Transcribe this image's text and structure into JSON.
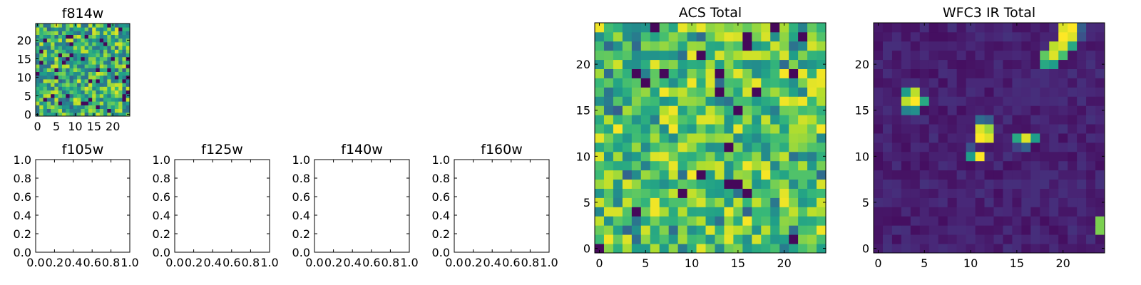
{
  "colormap": "viridis",
  "chart_data": [
    {
      "id": "f814w",
      "type": "heatmap",
      "title": "f814w",
      "size": 25,
      "xlim": [
        -0.5,
        24.5
      ],
      "ylim": [
        -0.5,
        24.5
      ],
      "xticks": [
        0,
        5,
        10,
        15,
        20
      ],
      "yticks": [
        0,
        5,
        10,
        15,
        20
      ],
      "xtick_labels": [
        "0",
        "5",
        "10",
        "15",
        "20"
      ],
      "ytick_labels": [
        "0",
        "5",
        "10",
        "15",
        "20"
      ],
      "pattern": "noise",
      "seed": 814,
      "background": 0.6,
      "spread": 0.3,
      "rows": []
    },
    {
      "id": "f105w",
      "type": "empty",
      "title": "f105w",
      "xlim": [
        0,
        1
      ],
      "ylim": [
        0,
        1
      ],
      "xticks": [
        0,
        0.2,
        0.4,
        0.6,
        0.8,
        1.0
      ],
      "yticks": [
        0,
        0.2,
        0.4,
        0.6,
        0.8,
        1.0
      ],
      "xtick_labels": [
        "0.0",
        "0.2",
        "0.4",
        "0.6",
        "0.8",
        "1.0"
      ],
      "ytick_labels": [
        "0.0",
        "0.2",
        "0.4",
        "0.6",
        "0.8",
        "1.0"
      ]
    },
    {
      "id": "f125w",
      "type": "empty",
      "title": "f125w",
      "xlim": [
        0,
        1
      ],
      "ylim": [
        0,
        1
      ],
      "xticks": [
        0,
        0.2,
        0.4,
        0.6,
        0.8,
        1.0
      ],
      "yticks": [
        0,
        0.2,
        0.4,
        0.6,
        0.8,
        1.0
      ],
      "xtick_labels": [
        "0.0",
        "0.2",
        "0.4",
        "0.6",
        "0.8",
        "1.0"
      ],
      "ytick_labels": [
        "0.0",
        "0.2",
        "0.4",
        "0.6",
        "0.8",
        "1.0"
      ]
    },
    {
      "id": "f140w",
      "type": "empty",
      "title": "f140w",
      "xlim": [
        0,
        1
      ],
      "ylim": [
        0,
        1
      ],
      "xticks": [
        0,
        0.2,
        0.4,
        0.6,
        0.8,
        1.0
      ],
      "yticks": [
        0,
        0.2,
        0.4,
        0.6,
        0.8,
        1.0
      ],
      "xtick_labels": [
        "0.0",
        "0.2",
        "0.4",
        "0.6",
        "0.8",
        "1.0"
      ],
      "ytick_labels": [
        "0.0",
        "0.2",
        "0.4",
        "0.6",
        "0.8",
        "1.0"
      ]
    },
    {
      "id": "f160w",
      "type": "empty",
      "title": "f160w",
      "xlim": [
        0,
        1
      ],
      "ylim": [
        0,
        1
      ],
      "xticks": [
        0,
        0.2,
        0.4,
        0.6,
        0.8,
        1.0
      ],
      "yticks": [
        0,
        0.2,
        0.4,
        0.6,
        0.8,
        1.0
      ],
      "xtick_labels": [
        "0.0",
        "0.2",
        "0.4",
        "0.6",
        "0.8",
        "1.0"
      ],
      "ytick_labels": [
        "0.0",
        "0.2",
        "0.4",
        "0.6",
        "0.8",
        "1.0"
      ]
    },
    {
      "id": "acs-total",
      "type": "heatmap",
      "title": "ACS Total",
      "size": 25,
      "xlim": [
        -0.5,
        24.5
      ],
      "ylim": [
        -0.5,
        24.5
      ],
      "xticks": [
        0,
        5,
        10,
        15,
        20
      ],
      "yticks": [
        0,
        5,
        10,
        15,
        20
      ],
      "xtick_labels": [
        "0",
        "5",
        "10",
        "15",
        "20"
      ],
      "ytick_labels": [
        "0",
        "5",
        "10",
        "15",
        "20"
      ],
      "pattern": "noise",
      "seed": 2024,
      "background": 0.68,
      "spread": 0.26,
      "rows": []
    },
    {
      "id": "wfc3-ir-total",
      "type": "heatmap",
      "title": "WFC3 IR Total",
      "size": 25,
      "xlim": [
        -0.5,
        24.5
      ],
      "ylim": [
        -0.5,
        24.5
      ],
      "xticks": [
        0,
        5,
        10,
        15,
        20
      ],
      "yticks": [
        0,
        5,
        10,
        15,
        20
      ],
      "xtick_labels": [
        "0",
        "5",
        "10",
        "15",
        "20"
      ],
      "ytick_labels": [
        "0",
        "5",
        "10",
        "15",
        "20"
      ],
      "pattern": "sources",
      "seed": 140,
      "background": 0.04,
      "spread": 0.1,
      "bright_pixels": [
        {
          "x": 20,
          "y": 24,
          "v": 0.95
        },
        {
          "x": 21,
          "y": 24,
          "v": 1.0
        },
        {
          "x": 20,
          "y": 23,
          "v": 1.0
        },
        {
          "x": 21,
          "y": 23,
          "v": 0.95
        },
        {
          "x": 19,
          "y": 22,
          "v": 0.9
        },
        {
          "x": 20,
          "y": 22,
          "v": 0.95
        },
        {
          "x": 21,
          "y": 22,
          "v": 0.6
        },
        {
          "x": 18,
          "y": 21,
          "v": 0.75
        },
        {
          "x": 19,
          "y": 21,
          "v": 0.95
        },
        {
          "x": 20,
          "y": 21,
          "v": 0.7
        },
        {
          "x": 18,
          "y": 20,
          "v": 0.6
        },
        {
          "x": 19,
          "y": 20,
          "v": 0.55
        },
        {
          "x": 22,
          "y": 24,
          "v": 0.3
        },
        {
          "x": 22,
          "y": 23,
          "v": 0.25
        },
        {
          "x": 3,
          "y": 17,
          "v": 0.55
        },
        {
          "x": 4,
          "y": 17,
          "v": 0.9
        },
        {
          "x": 3,
          "y": 16,
          "v": 0.9
        },
        {
          "x": 4,
          "y": 16,
          "v": 1.0
        },
        {
          "x": 5,
          "y": 16,
          "v": 0.6
        },
        {
          "x": 3,
          "y": 15,
          "v": 0.45
        },
        {
          "x": 4,
          "y": 15,
          "v": 0.5
        },
        {
          "x": 11,
          "y": 14,
          "v": 0.35
        },
        {
          "x": 12,
          "y": 14,
          "v": 0.3
        },
        {
          "x": 11,
          "y": 13,
          "v": 0.95
        },
        {
          "x": 12,
          "y": 13,
          "v": 0.85
        },
        {
          "x": 11,
          "y": 12,
          "v": 1.0
        },
        {
          "x": 12,
          "y": 12,
          "v": 0.95
        },
        {
          "x": 10,
          "y": 11,
          "v": 0.25
        },
        {
          "x": 10,
          "y": 10,
          "v": 0.55
        },
        {
          "x": 11,
          "y": 10,
          "v": 1.0
        },
        {
          "x": 15,
          "y": 12,
          "v": 0.6
        },
        {
          "x": 16,
          "y": 12,
          "v": 0.95
        },
        {
          "x": 17,
          "y": 12,
          "v": 0.55
        },
        {
          "x": 15,
          "y": 11,
          "v": 0.2
        },
        {
          "x": 16,
          "y": 11,
          "v": 0.3
        },
        {
          "x": 24,
          "y": 3,
          "v": 0.8
        },
        {
          "x": 24,
          "y": 2,
          "v": 0.8
        }
      ],
      "rows": []
    }
  ]
}
